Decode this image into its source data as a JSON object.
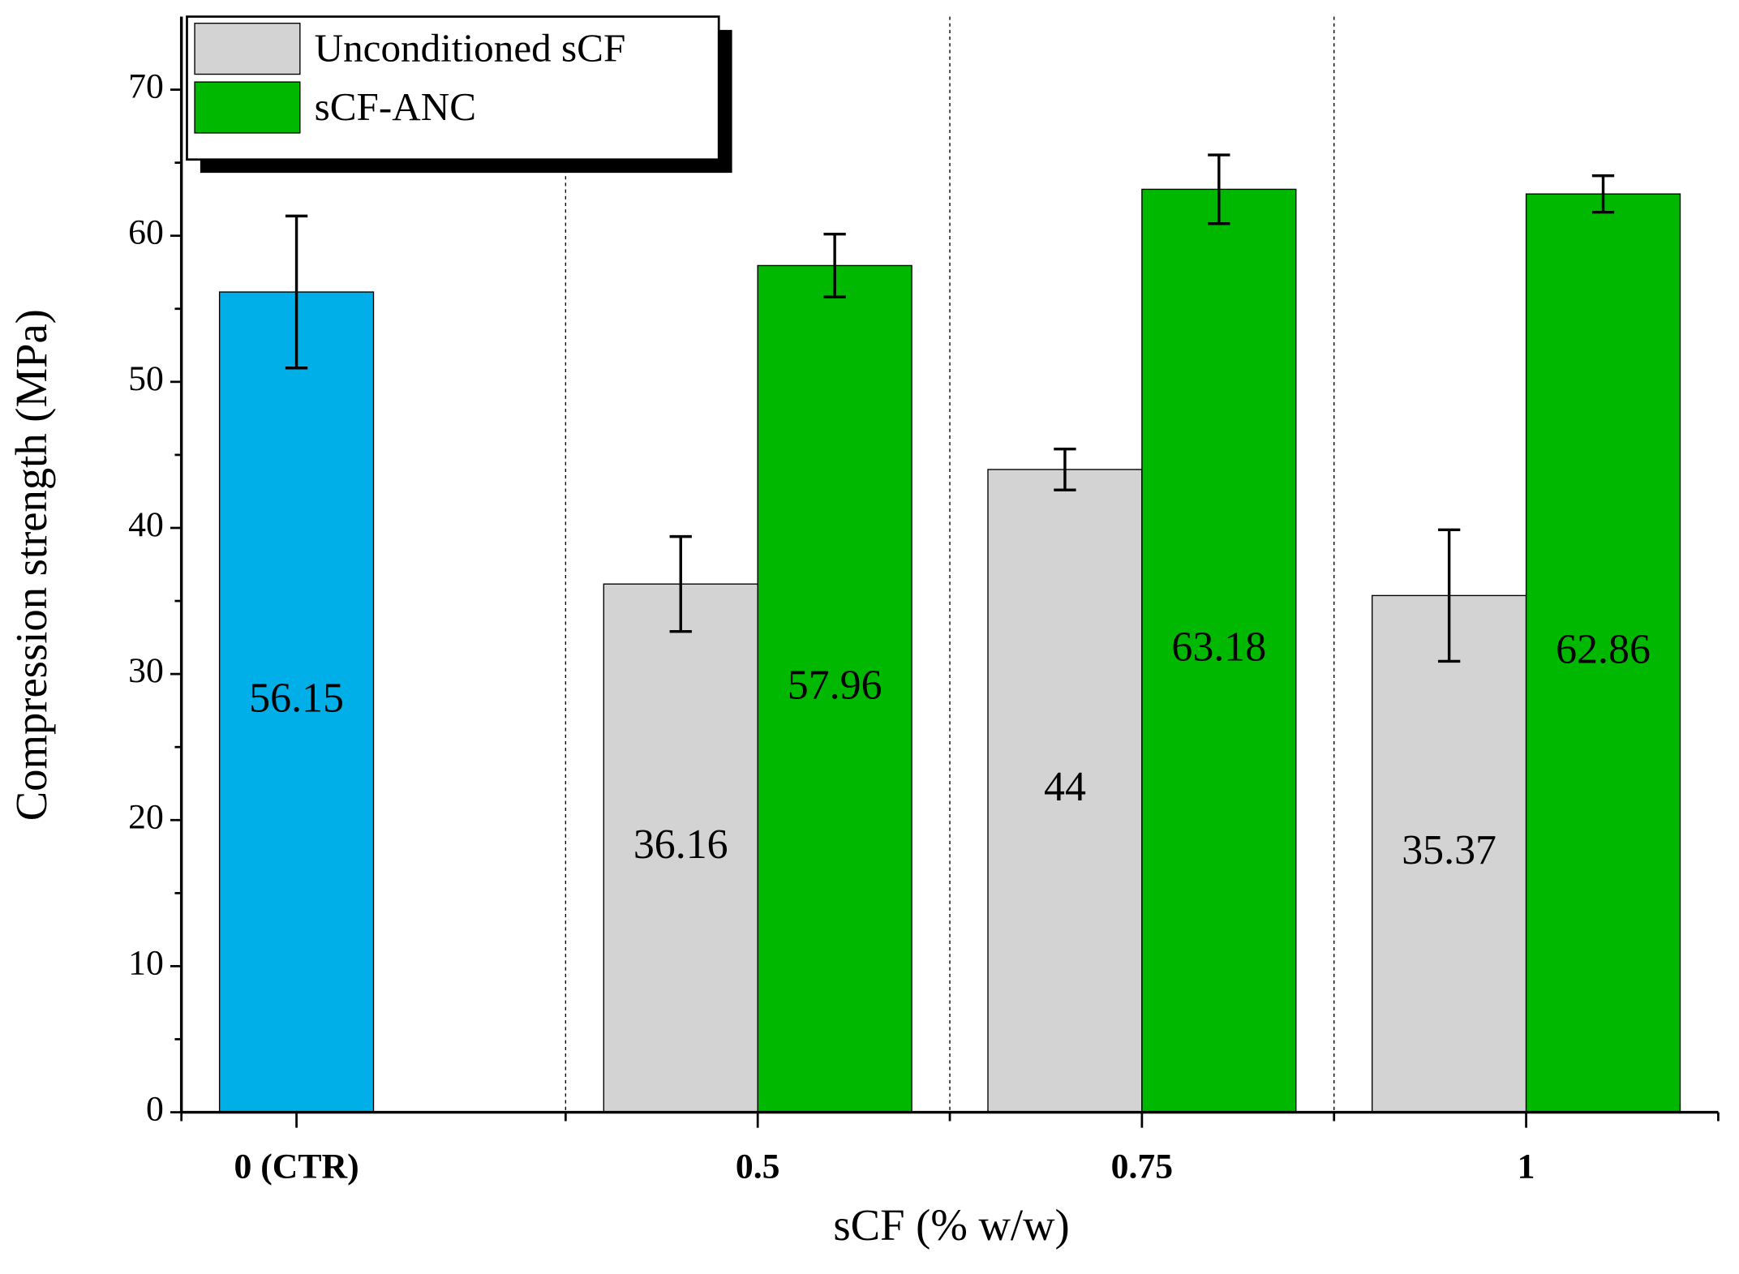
{
  "chart_data": {
    "type": "bar",
    "xlabel": "sCF (% w/w)",
    "ylabel": "Compression strength (MPa)",
    "categories": [
      "0 (CTR)",
      "0.5",
      "0.75",
      "1"
    ],
    "series": [
      {
        "color": "#00aee8",
        "values": [
          56.15,
          null,
          null,
          null
        ],
        "errors": [
          5.2,
          null,
          null,
          null
        ]
      },
      {
        "name": "Unconditioned sCF",
        "color": "#d3d3d3",
        "values": [
          null,
          36.16,
          44,
          35.37
        ],
        "errors": [
          null,
          3.25,
          1.4,
          4.5
        ]
      },
      {
        "name": "sCF-ANC",
        "color": "#00b800",
        "values": [
          null,
          57.96,
          63.18,
          62.86
        ],
        "errors": [
          null,
          2.15,
          2.35,
          1.25
        ]
      }
    ],
    "ylim": [
      0,
      75
    ],
    "yticks": [
      0,
      10,
      20,
      30,
      40,
      50,
      60,
      70
    ],
    "legend": "upper left"
  }
}
